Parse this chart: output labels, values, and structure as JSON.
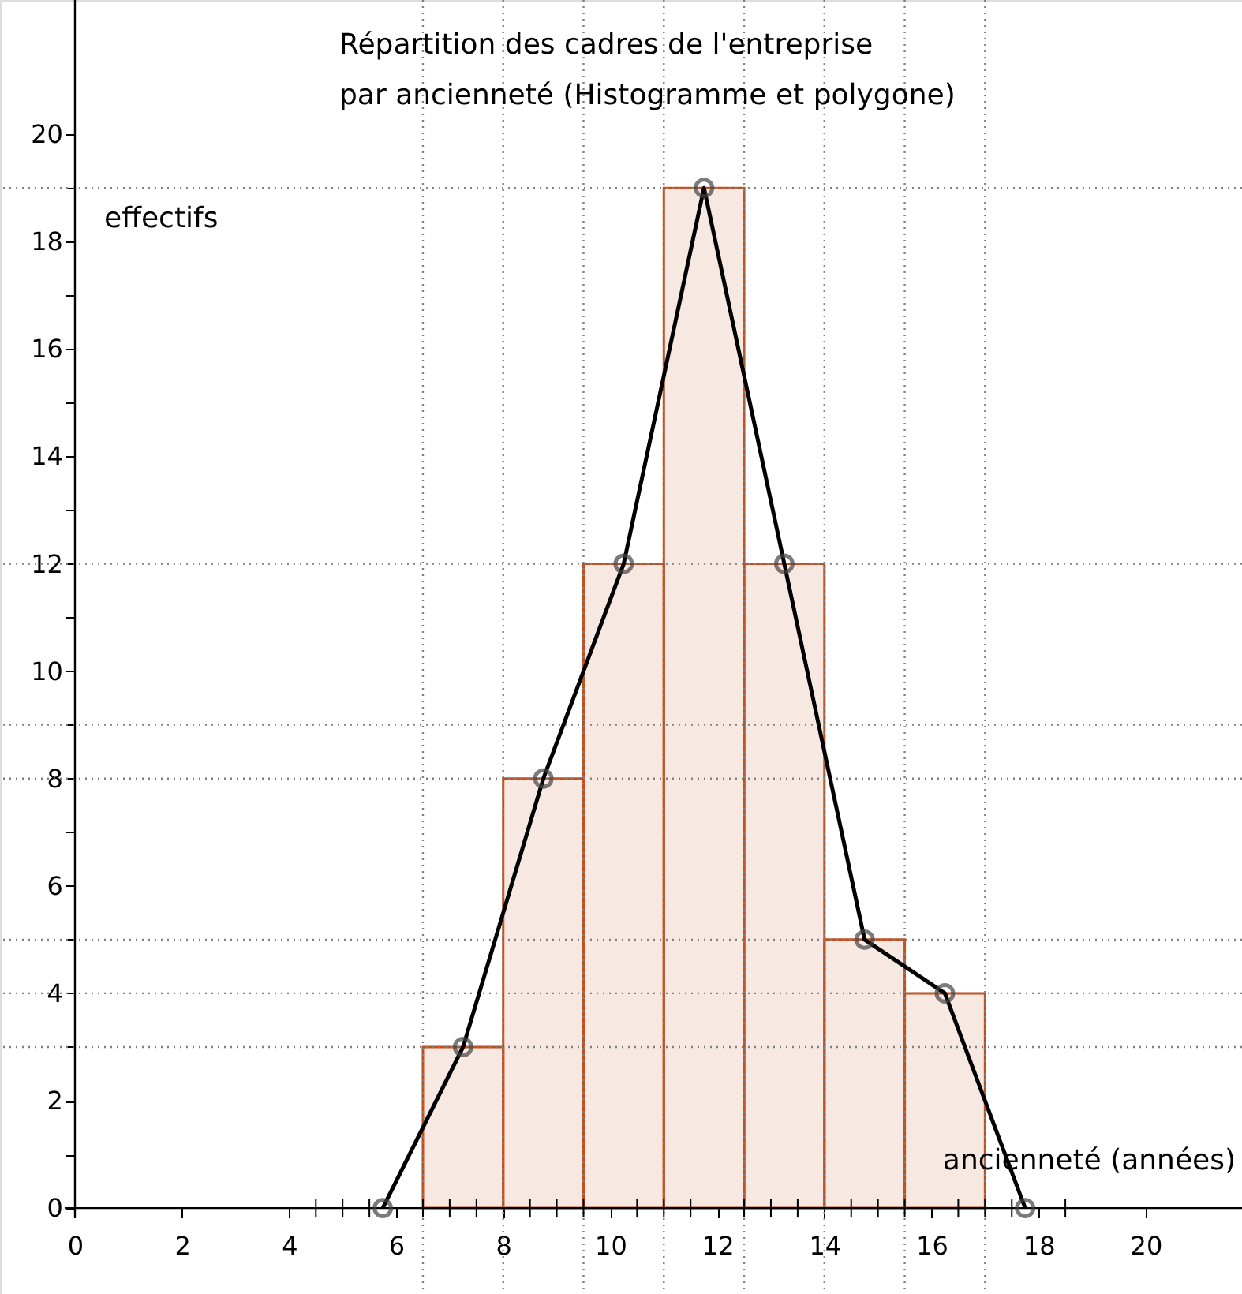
{
  "chart_data": {
    "type": "histogram",
    "title": "Répartition des cadres de l'entreprise\npar ancienneté (Histogramme et polygone)",
    "xlabel": "ancienneté (années)",
    "ylabel": "effectifs",
    "bins": [
      6.5,
      8,
      9.5,
      11,
      12.5,
      14,
      15.5,
      17
    ],
    "values": [
      3,
      8,
      12,
      19,
      12,
      5,
      4
    ],
    "color": "#c0501e",
    "series": [
      {
        "type": "line",
        "x": [
          5.75,
          7.25,
          8.75,
          10.25,
          11.75,
          13.25,
          14.75,
          16.25,
          17.75
        ],
        "values": [
          0,
          3,
          8,
          12,
          19,
          12,
          5,
          4,
          0
        ],
        "color": "#000000",
        "marker": "circle"
      }
    ],
    "xlim": [
      -1.4,
      21.8
    ],
    "ylim": [
      -1.6,
      22.5
    ],
    "xticks": [
      0,
      2,
      4,
      {
        "value": 4.5,
        "label": null
      },
      {
        "value": 5,
        "label": null
      },
      {
        "value": 5.5,
        "label": null
      },
      6,
      {
        "value": 6.5,
        "label": null
      },
      {
        "value": 7,
        "label": null
      },
      {
        "value": 7.5,
        "label": null
      },
      8,
      {
        "value": 8.5,
        "label": null
      },
      {
        "value": 9,
        "label": null
      },
      {
        "value": 9.5,
        "label": null
      },
      10,
      {
        "value": 10.5,
        "label": null
      },
      {
        "value": 11,
        "label": null
      },
      {
        "value": 11.5,
        "label": null
      },
      12,
      {
        "value": 12.5,
        "label": null
      },
      {
        "value": 13,
        "label": null
      },
      {
        "value": 13.5,
        "label": null
      },
      14,
      {
        "value": 14.5,
        "label": null
      },
      {
        "value": 15,
        "label": null
      },
      {
        "value": 15.5,
        "label": null
      },
      16,
      {
        "value": 16.5,
        "label": null
      },
      {
        "value": 17,
        "label": null
      },
      {
        "value": 17.5,
        "label": null
      },
      18,
      {
        "value": 18.5,
        "label": null
      },
      20
    ],
    "yticks": [
      0,
      {
        "value": 1,
        "label": null
      },
      2,
      {
        "value": 3,
        "label": null
      },
      4,
      {
        "value": 5,
        "label": null
      },
      6,
      {
        "value": 7,
        "label": null
      },
      8,
      {
        "value": 9,
        "label": null
      },
      10,
      {
        "value": 11,
        "label": null
      },
      12,
      {
        "value": 13,
        "label": null
      },
      14,
      {
        "value": 15,
        "label": null
      },
      16,
      {
        "value": 17,
        "label": null
      },
      18,
      {
        "value": 19,
        "label": null
      },
      20
    ],
    "ref_lines": [
      {
        "axis": "x",
        "value": 6.5,
        "color": "#808080",
        "line_style": "dotted"
      },
      {
        "axis": "x",
        "value": 8,
        "color": "#808080",
        "line_style": "dotted"
      },
      {
        "axis": "x",
        "value": 9.5,
        "color": "#808080",
        "line_style": "dotted"
      },
      {
        "axis": "x",
        "value": 11,
        "color": "#808080",
        "line_style": "dotted"
      },
      {
        "axis": "x",
        "value": 12.5,
        "color": "#808080",
        "line_style": "dotted"
      },
      {
        "axis": "x",
        "value": 14,
        "color": "#808080",
        "line_style": "dotted"
      },
      {
        "axis": "x",
        "value": 15.5,
        "color": "#808080",
        "line_style": "dotted"
      },
      {
        "axis": "x",
        "value": 17,
        "color": "#808080",
        "line_style": "dotted"
      },
      {
        "axis": "y",
        "value": 3,
        "color": "#808080",
        "line_style": "dotted"
      },
      {
        "axis": "y",
        "value": 4,
        "color": "#808080",
        "line_style": "dotted"
      },
      {
        "axis": "y",
        "value": 5,
        "color": "#808080",
        "line_style": "dotted"
      },
      {
        "axis": "y",
        "value": 8,
        "color": "#808080",
        "line_style": "dotted"
      },
      {
        "axis": "y",
        "value": 9,
        "color": "#808080",
        "line_style": "dotted"
      },
      {
        "axis": "y",
        "value": 12,
        "color": "#808080",
        "line_style": "dotted"
      },
      {
        "axis": "y",
        "value": 19,
        "color": "#808080",
        "line_style": "dotted"
      }
    ]
  }
}
